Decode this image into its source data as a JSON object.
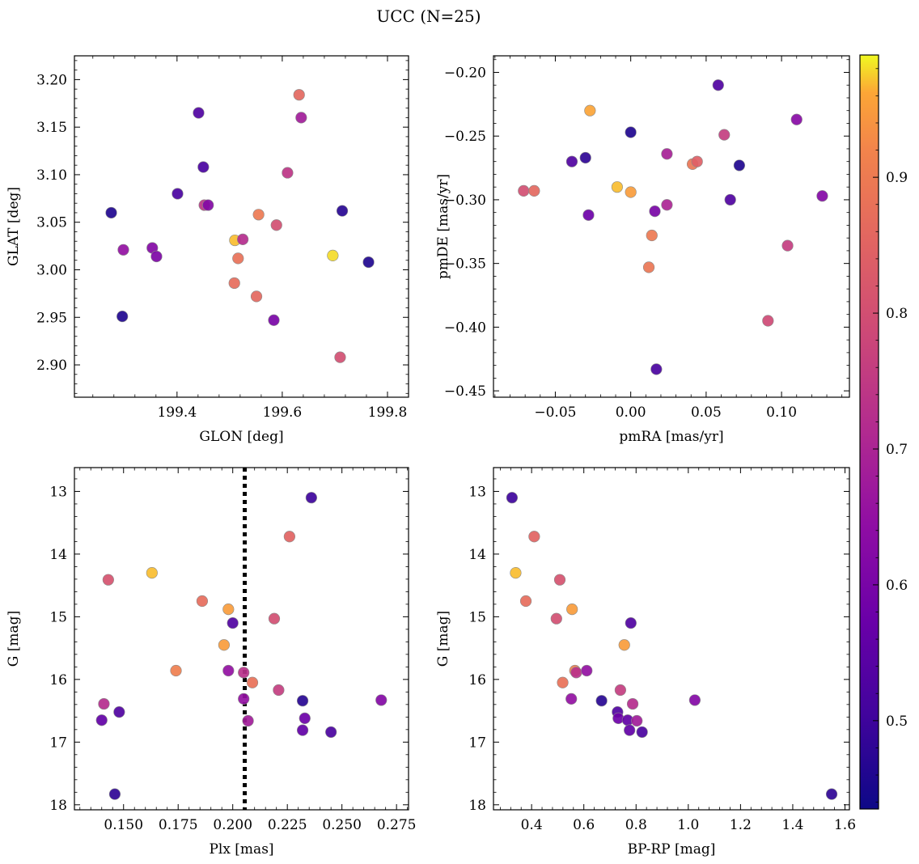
{
  "figure": {
    "title": "UCC (N=25)"
  },
  "colorbar": {
    "range": [
      0.435,
      0.99
    ],
    "ticks": [
      0.5,
      0.6,
      0.7,
      0.8,
      0.9
    ],
    "tick_labels": [
      "0.5",
      "0.6",
      "0.7",
      "0.8",
      "0.9"
    ],
    "colormap": "plasma"
  },
  "chart_data": [
    {
      "type": "scatter",
      "xlabel": "GLON [deg]",
      "ylabel": "GLAT [deg]",
      "xlim": [
        199.205,
        199.84
      ],
      "ylim": [
        2.866,
        3.225
      ],
      "y_inverted": false,
      "xticks": [
        199.4,
        199.6,
        199.8
      ],
      "xtick_labels": [
        "199.4",
        "199.6",
        "199.8"
      ],
      "yticks": [
        2.9,
        2.95,
        3.0,
        3.05,
        3.1,
        3.15,
        3.2
      ],
      "ytick_labels": [
        "2.90",
        "2.95",
        "3.00",
        "3.05",
        "3.10",
        "3.15",
        "3.20"
      ],
      "points": [
        {
          "x": 199.275,
          "y": 3.06,
          "c": 0.46
        },
        {
          "x": 199.298,
          "y": 3.021,
          "c": 0.65
        },
        {
          "x": 199.296,
          "y": 2.951,
          "c": 0.46
        },
        {
          "x": 199.353,
          "y": 3.023,
          "c": 0.62
        },
        {
          "x": 199.361,
          "y": 3.014,
          "c": 0.61
        },
        {
          "x": 199.401,
          "y": 3.08,
          "c": 0.52
        },
        {
          "x": 199.441,
          "y": 3.165,
          "c": 0.53
        },
        {
          "x": 199.45,
          "y": 3.108,
          "c": 0.52
        },
        {
          "x": 199.452,
          "y": 3.068,
          "c": 0.74
        },
        {
          "x": 199.459,
          "y": 3.068,
          "c": 0.62
        },
        {
          "x": 199.51,
          "y": 3.031,
          "c": 0.97
        },
        {
          "x": 199.509,
          "y": 2.986,
          "c": 0.87
        },
        {
          "x": 199.516,
          "y": 3.012,
          "c": 0.88
        },
        {
          "x": 199.525,
          "y": 3.032,
          "c": 0.72
        },
        {
          "x": 199.551,
          "y": 2.972,
          "c": 0.86
        },
        {
          "x": 199.555,
          "y": 3.058,
          "c": 0.9
        },
        {
          "x": 199.584,
          "y": 2.947,
          "c": 0.6
        },
        {
          "x": 199.589,
          "y": 3.047,
          "c": 0.8
        },
        {
          "x": 199.61,
          "y": 3.102,
          "c": 0.74
        },
        {
          "x": 199.632,
          "y": 3.184,
          "c": 0.86
        },
        {
          "x": 199.636,
          "y": 3.16,
          "c": 0.68
        },
        {
          "x": 199.696,
          "y": 3.015,
          "c": 0.98
        },
        {
          "x": 199.71,
          "y": 2.908,
          "c": 0.8
        },
        {
          "x": 199.714,
          "y": 3.062,
          "c": 0.47
        },
        {
          "x": 199.764,
          "y": 3.008,
          "c": 0.46
        }
      ]
    },
    {
      "type": "scatter",
      "xlabel": "pmRA [mas/yr]",
      "ylabel": "pmDE [mas/yr]",
      "xlim": [
        -0.091,
        0.145
      ],
      "ylim": [
        -0.455,
        -0.187
      ],
      "y_inverted": false,
      "xticks": [
        -0.05,
        0.0,
        0.05,
        0.1
      ],
      "xtick_labels": [
        "−0.05",
        "0.00",
        "0.05",
        "0.10"
      ],
      "yticks": [
        -0.45,
        -0.4,
        -0.35,
        -0.3,
        -0.25,
        -0.2
      ],
      "ytick_labels": [
        "−0.45",
        "−0.40",
        "−0.35",
        "−0.30",
        "−0.25",
        "−0.20"
      ],
      "points": [
        {
          "x": -0.071,
          "y": -0.293,
          "c": 0.8
        },
        {
          "x": -0.064,
          "y": -0.293,
          "c": 0.86
        },
        {
          "x": -0.039,
          "y": -0.27,
          "c": 0.53
        },
        {
          "x": -0.03,
          "y": -0.267,
          "c": 0.48
        },
        {
          "x": -0.028,
          "y": -0.312,
          "c": 0.58
        },
        {
          "x": -0.027,
          "y": -0.23,
          "c": 0.96
        },
        {
          "x": -0.009,
          "y": -0.29,
          "c": 0.97
        },
        {
          "x": 0.0,
          "y": -0.247,
          "c": 0.46
        },
        {
          "x": 0.0,
          "y": -0.294,
          "c": 0.95
        },
        {
          "x": 0.012,
          "y": -0.353,
          "c": 0.89
        },
        {
          "x": 0.014,
          "y": -0.328,
          "c": 0.9
        },
        {
          "x": 0.016,
          "y": -0.309,
          "c": 0.6
        },
        {
          "x": 0.017,
          "y": -0.433,
          "c": 0.52
        },
        {
          "x": 0.024,
          "y": -0.264,
          "c": 0.69
        },
        {
          "x": 0.024,
          "y": -0.304,
          "c": 0.7
        },
        {
          "x": 0.041,
          "y": -0.272,
          "c": 0.89
        },
        {
          "x": 0.044,
          "y": -0.27,
          "c": 0.84
        },
        {
          "x": 0.058,
          "y": -0.21,
          "c": 0.53
        },
        {
          "x": 0.062,
          "y": -0.249,
          "c": 0.76
        },
        {
          "x": 0.066,
          "y": -0.3,
          "c": 0.53
        },
        {
          "x": 0.072,
          "y": -0.273,
          "c": 0.46
        },
        {
          "x": 0.091,
          "y": -0.395,
          "c": 0.79
        },
        {
          "x": 0.104,
          "y": -0.336,
          "c": 0.76
        },
        {
          "x": 0.11,
          "y": -0.237,
          "c": 0.63
        },
        {
          "x": 0.127,
          "y": -0.297,
          "c": 0.62
        }
      ]
    },
    {
      "type": "scatter",
      "xlabel": "Plx [mas]",
      "ylabel": "G [mag]",
      "xlim": [
        0.1275,
        0.2805
      ],
      "ylim": [
        12.62,
        18.08
      ],
      "y_inverted": true,
      "xticks": [
        0.15,
        0.175,
        0.2,
        0.225,
        0.25,
        0.275
      ],
      "xtick_labels": [
        "0.150",
        "0.175",
        "0.200",
        "0.225",
        "0.250",
        "0.275"
      ],
      "yticks": [
        13,
        14,
        15,
        16,
        17,
        18
      ],
      "ytick_labels": [
        "13",
        "14",
        "15",
        "16",
        "17",
        "18"
      ],
      "vline": {
        "x": 0.2055,
        "style": "dotted"
      },
      "points": [
        {
          "x": 0.14,
          "y": 16.65,
          "c": 0.56
        },
        {
          "x": 0.141,
          "y": 16.39,
          "c": 0.72
        },
        {
          "x": 0.143,
          "y": 14.41,
          "c": 0.81
        },
        {
          "x": 0.146,
          "y": 17.83,
          "c": 0.48
        },
        {
          "x": 0.148,
          "y": 16.52,
          "c": 0.53
        },
        {
          "x": 0.163,
          "y": 14.3,
          "c": 0.97
        },
        {
          "x": 0.174,
          "y": 15.86,
          "c": 0.91
        },
        {
          "x": 0.186,
          "y": 14.75,
          "c": 0.87
        },
        {
          "x": 0.196,
          "y": 15.45,
          "c": 0.95
        },
        {
          "x": 0.198,
          "y": 14.88,
          "c": 0.95
        },
        {
          "x": 0.198,
          "y": 15.86,
          "c": 0.65
        },
        {
          "x": 0.2,
          "y": 15.1,
          "c": 0.53
        },
        {
          "x": 0.205,
          "y": 15.89,
          "c": 0.73
        },
        {
          "x": 0.205,
          "y": 16.31,
          "c": 0.65
        },
        {
          "x": 0.207,
          "y": 16.66,
          "c": 0.68
        },
        {
          "x": 0.209,
          "y": 16.05,
          "c": 0.88
        },
        {
          "x": 0.219,
          "y": 15.03,
          "c": 0.8
        },
        {
          "x": 0.221,
          "y": 16.17,
          "c": 0.76
        },
        {
          "x": 0.226,
          "y": 13.72,
          "c": 0.85
        },
        {
          "x": 0.232,
          "y": 16.34,
          "c": 0.47
        },
        {
          "x": 0.232,
          "y": 16.81,
          "c": 0.56
        },
        {
          "x": 0.233,
          "y": 16.62,
          "c": 0.58
        },
        {
          "x": 0.236,
          "y": 13.1,
          "c": 0.5
        },
        {
          "x": 0.245,
          "y": 16.84,
          "c": 0.52
        },
        {
          "x": 0.268,
          "y": 16.33,
          "c": 0.62
        }
      ]
    },
    {
      "type": "scatter",
      "xlabel": "BP-RP [mag]",
      "ylabel": "G [mag]",
      "xlim": [
        0.254,
        1.617
      ],
      "ylim": [
        12.62,
        18.08
      ],
      "y_inverted": true,
      "xticks": [
        0.4,
        0.6,
        0.8,
        1.0,
        1.2,
        1.4,
        1.6
      ],
      "xtick_labels": [
        "0.4",
        "0.6",
        "0.8",
        "1.0",
        "1.2",
        "1.4",
        "1.6"
      ],
      "yticks": [
        13,
        14,
        15,
        16,
        17,
        18
      ],
      "ytick_labels": [
        "13",
        "14",
        "15",
        "16",
        "17",
        "18"
      ],
      "points": [
        {
          "x": 0.325,
          "y": 13.1,
          "c": 0.5
        },
        {
          "x": 0.339,
          "y": 14.3,
          "c": 0.97
        },
        {
          "x": 0.378,
          "y": 14.75,
          "c": 0.87
        },
        {
          "x": 0.41,
          "y": 13.72,
          "c": 0.85
        },
        {
          "x": 0.495,
          "y": 15.03,
          "c": 0.8
        },
        {
          "x": 0.508,
          "y": 14.41,
          "c": 0.81
        },
        {
          "x": 0.519,
          "y": 16.05,
          "c": 0.88
        },
        {
          "x": 0.552,
          "y": 16.31,
          "c": 0.65
        },
        {
          "x": 0.555,
          "y": 14.88,
          "c": 0.95
        },
        {
          "x": 0.566,
          "y": 15.86,
          "c": 0.91
        },
        {
          "x": 0.571,
          "y": 15.89,
          "c": 0.73
        },
        {
          "x": 0.611,
          "y": 15.86,
          "c": 0.65
        },
        {
          "x": 0.668,
          "y": 16.34,
          "c": 0.47
        },
        {
          "x": 0.729,
          "y": 16.52,
          "c": 0.53
        },
        {
          "x": 0.732,
          "y": 16.62,
          "c": 0.58
        },
        {
          "x": 0.74,
          "y": 16.17,
          "c": 0.76
        },
        {
          "x": 0.755,
          "y": 15.45,
          "c": 0.95
        },
        {
          "x": 0.768,
          "y": 16.65,
          "c": 0.56
        },
        {
          "x": 0.775,
          "y": 16.81,
          "c": 0.56
        },
        {
          "x": 0.78,
          "y": 15.1,
          "c": 0.53
        },
        {
          "x": 0.787,
          "y": 16.39,
          "c": 0.72
        },
        {
          "x": 0.803,
          "y": 16.66,
          "c": 0.68
        },
        {
          "x": 0.823,
          "y": 16.84,
          "c": 0.52
        },
        {
          "x": 1.025,
          "y": 16.33,
          "c": 0.62
        },
        {
          "x": 1.549,
          "y": 17.83,
          "c": 0.48
        }
      ]
    }
  ]
}
